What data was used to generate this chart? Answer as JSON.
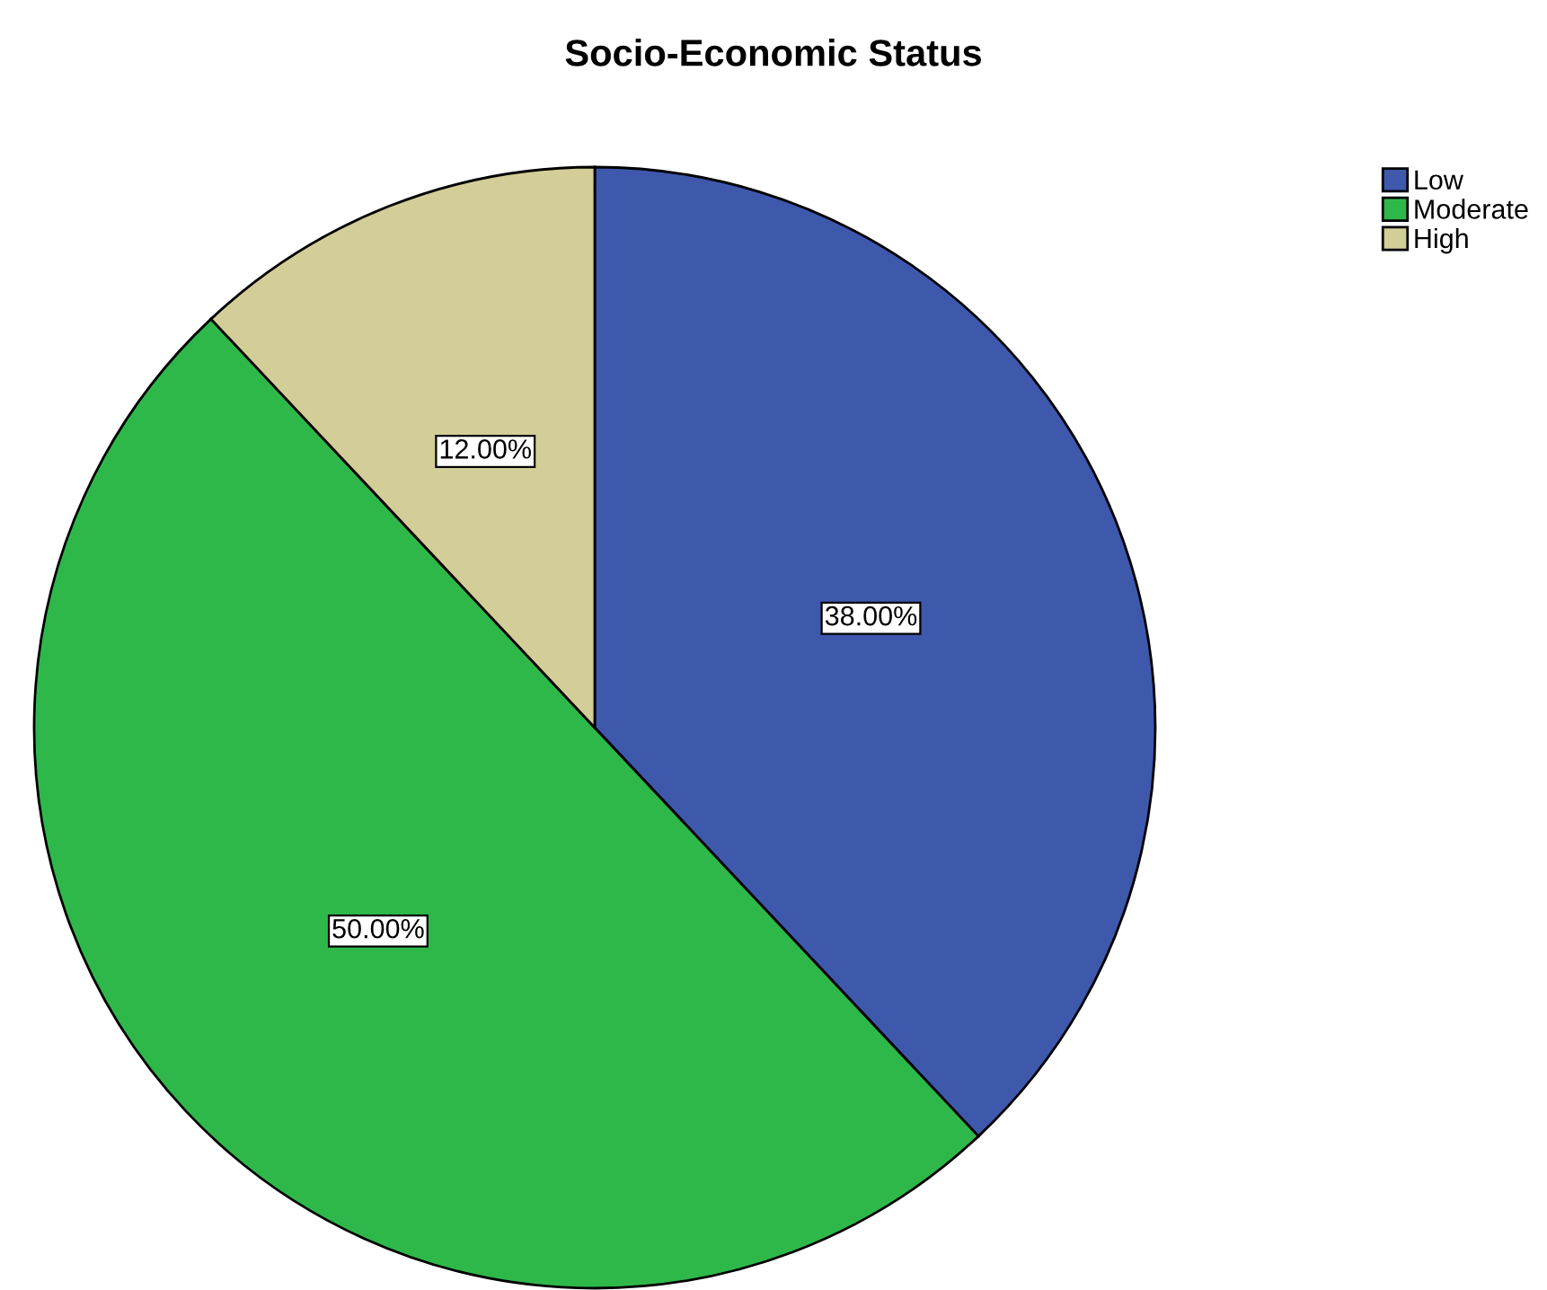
{
  "chart_data": {
    "type": "pie",
    "title": "Socio-Economic Status",
    "categories": [
      "Low",
      "Moderate",
      "High"
    ],
    "values": [
      38,
      50,
      12
    ],
    "colors": [
      "#3e58ac",
      "#2fb84a",
      "#d3cd98"
    ],
    "value_labels": [
      "38.00%",
      "50.00%",
      "12.00%"
    ],
    "legend": "top right"
  }
}
